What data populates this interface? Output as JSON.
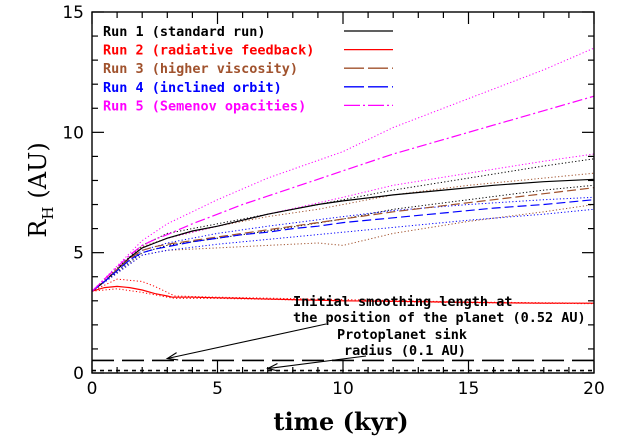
{
  "chart_data": {
    "type": "line",
    "xlabel": "time (kyr)",
    "ylabel_main": "R",
    "ylabel_sub": "H",
    "ylabel_unit": "(AU)",
    "xlim": [
      0,
      20
    ],
    "ylim": [
      0,
      15
    ],
    "xticks": [
      "0",
      "5",
      "10",
      "15",
      "20"
    ],
    "yticks": [
      "0",
      "5",
      "10",
      "15"
    ],
    "legend_position": "top-left",
    "series": [
      {
        "name": "Run 1 (standard run)",
        "color": "#000000",
        "dash": "solid",
        "x": [
          0,
          0.5,
          1,
          1.5,
          2,
          2.5,
          3,
          4,
          5,
          6,
          7,
          8,
          9,
          10,
          12,
          14,
          16,
          18,
          20
        ],
        "y": [
          3.4,
          3.8,
          4.3,
          4.8,
          5.2,
          5.4,
          5.6,
          5.9,
          6.1,
          6.35,
          6.6,
          6.8,
          7.0,
          7.15,
          7.4,
          7.6,
          7.8,
          7.95,
          8.05
        ]
      },
      {
        "name": "Run 2 (radiative feedback)",
        "color": "#ff0000",
        "dash": "solid",
        "x": [
          0,
          0.5,
          1,
          1.5,
          2,
          2.5,
          3,
          3.2,
          4,
          6,
          8,
          10,
          12,
          14,
          16,
          18,
          20
        ],
        "y": [
          3.4,
          3.55,
          3.6,
          3.55,
          3.45,
          3.3,
          3.2,
          3.15,
          3.15,
          3.1,
          3.05,
          3.0,
          2.98,
          2.95,
          2.92,
          2.9,
          2.9
        ]
      },
      {
        "name": "Run 3 (higher viscosity)",
        "color": "#a0522d",
        "dash": "dashed",
        "x": [
          0,
          0.5,
          1,
          1.5,
          2,
          2.5,
          3,
          4,
          5,
          6,
          7,
          8,
          9,
          10,
          12,
          14,
          16,
          18,
          20
        ],
        "y": [
          3.4,
          3.8,
          4.3,
          4.75,
          5.1,
          5.25,
          5.35,
          5.5,
          5.65,
          5.8,
          5.95,
          6.1,
          6.25,
          6.4,
          6.7,
          6.95,
          7.2,
          7.45,
          7.7
        ]
      },
      {
        "name": "Run 4 (inclined orbit)",
        "color": "#0000ff",
        "dash": "dashed",
        "x": [
          0,
          0.5,
          1,
          1.5,
          2,
          2.5,
          3,
          4,
          5,
          6,
          7,
          8,
          9,
          10,
          12,
          14,
          16,
          18,
          20
        ],
        "y": [
          3.4,
          3.8,
          4.25,
          4.7,
          5.0,
          5.15,
          5.25,
          5.45,
          5.6,
          5.75,
          5.85,
          6.0,
          6.1,
          6.25,
          6.45,
          6.65,
          6.85,
          7.0,
          7.2
        ]
      },
      {
        "name": "Run 5 (Semenov opacities)",
        "color": "#ff00ff",
        "dash": "dashdot",
        "x": [
          0,
          0.5,
          1,
          1.5,
          2,
          2.5,
          3,
          4,
          5,
          6,
          7,
          8,
          9,
          10,
          12,
          14,
          16,
          18,
          20
        ],
        "y": [
          3.4,
          3.9,
          4.4,
          4.9,
          5.3,
          5.55,
          5.75,
          6.2,
          6.6,
          7.0,
          7.35,
          7.7,
          8.05,
          8.4,
          9.1,
          9.7,
          10.3,
          10.9,
          11.5
        ]
      }
    ],
    "envelopes": [
      {
        "color": "#000000",
        "upper": {
          "x": [
            0,
            2,
            3,
            5,
            7,
            10,
            12,
            15,
            18,
            20
          ],
          "y": [
            3.4,
            5.3,
            5.8,
            6.2,
            6.6,
            7.2,
            7.6,
            8.1,
            8.6,
            8.9
          ]
        },
        "lower": {
          "x": [
            0,
            2,
            3,
            5,
            7,
            10,
            12,
            15,
            18,
            20
          ],
          "y": [
            3.4,
            5.0,
            5.3,
            5.6,
            5.9,
            6.4,
            6.8,
            7.2,
            7.6,
            7.8
          ]
        }
      },
      {
        "color": "#ff0000",
        "upper": {
          "x": [
            0,
            1,
            2,
            2.5,
            3,
            3.3,
            5,
            10,
            15,
            20
          ],
          "y": [
            3.4,
            3.9,
            3.8,
            3.6,
            3.35,
            3.2,
            3.15,
            3.05,
            2.95,
            2.9
          ]
        },
        "lower": {
          "x": [
            0,
            1,
            2,
            2.5,
            3,
            3.3,
            5,
            10,
            15,
            20
          ],
          "y": [
            3.4,
            3.5,
            3.35,
            3.25,
            3.15,
            3.1,
            3.1,
            3.0,
            2.92,
            2.88
          ]
        }
      },
      {
        "color": "#a0522d",
        "upper": {
          "x": [
            0,
            2,
            3,
            5,
            7,
            9,
            10,
            12,
            15,
            18,
            20
          ],
          "y": [
            3.4,
            5.25,
            5.6,
            6.1,
            6.5,
            6.8,
            7.0,
            7.4,
            7.8,
            8.1,
            8.3
          ]
        },
        "lower": {
          "x": [
            0,
            2,
            3,
            5,
            7,
            9,
            10,
            12,
            15,
            18,
            20
          ],
          "y": [
            3.4,
            4.9,
            5.1,
            5.2,
            5.3,
            5.4,
            5.3,
            5.8,
            6.3,
            6.7,
            7.0
          ]
        }
      },
      {
        "color": "#0000ff",
        "upper": {
          "x": [
            0,
            2,
            3,
            5,
            7,
            10,
            12,
            15,
            18,
            20
          ],
          "y": [
            3.4,
            5.1,
            5.4,
            5.8,
            6.1,
            6.5,
            6.75,
            7.0,
            7.2,
            7.3
          ]
        },
        "lower": {
          "x": [
            0,
            2,
            3,
            5,
            7,
            10,
            12,
            15,
            18,
            20
          ],
          "y": [
            3.4,
            4.9,
            5.1,
            5.35,
            5.55,
            5.85,
            6.05,
            6.35,
            6.6,
            6.8
          ]
        }
      },
      {
        "color": "#ff00ff",
        "upper": {
          "x": [
            0,
            2,
            3,
            5,
            7,
            10,
            12,
            15,
            18,
            20
          ],
          "y": [
            3.4,
            5.5,
            6.2,
            7.2,
            8.1,
            9.2,
            10.2,
            11.4,
            12.6,
            13.5
          ]
        },
        "lower": {
          "x": [
            0,
            2,
            3,
            5,
            7,
            10,
            12,
            15,
            18,
            20
          ],
          "y": [
            3.4,
            5.2,
            5.6,
            6.1,
            6.6,
            7.3,
            7.8,
            8.3,
            8.8,
            9.1
          ]
        }
      }
    ],
    "reference_lines": [
      {
        "y": 0.52,
        "color": "#000000",
        "dash": "long-dash"
      },
      {
        "y": 0.1,
        "color": "#000000",
        "dash": "short-dash"
      }
    ],
    "annotations": [
      {
        "lines": [
          "Initial smoothing length at",
          "the position of the planet (0.52 AU)"
        ],
        "arrow_to": [
          3,
          0.52
        ]
      },
      {
        "lines": [
          "Protoplanet sink",
          "radius (0.1 AU)"
        ],
        "arrow_to": [
          7,
          0.1
        ]
      }
    ]
  }
}
